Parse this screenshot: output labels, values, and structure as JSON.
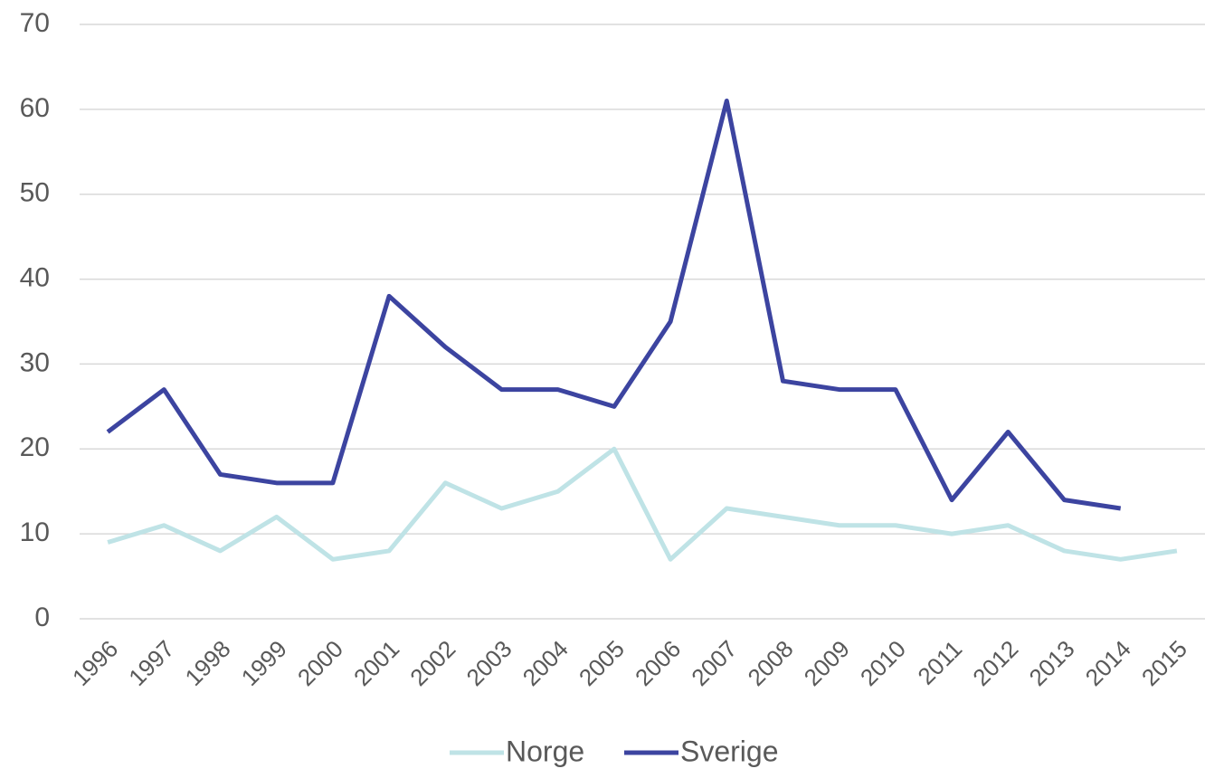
{
  "chart_data": {
    "type": "line",
    "categories": [
      "1996",
      "1997",
      "1998",
      "1999",
      "2000",
      "2001",
      "2002",
      "2003",
      "2004",
      "2005",
      "2006",
      "2007",
      "2008",
      "2009",
      "2010",
      "2011",
      "2012",
      "2013",
      "2014",
      "2015"
    ],
    "series": [
      {
        "name": "Norge",
        "color": "#bfe3e6",
        "values": [
          9,
          11,
          8,
          12,
          7,
          8,
          16,
          13,
          15,
          20,
          7,
          13,
          12,
          11,
          11,
          10,
          11,
          8,
          7,
          8
        ]
      },
      {
        "name": "Sverige",
        "color": "#3c44a0",
        "values": [
          22,
          27,
          17,
          16,
          16,
          38,
          32,
          27,
          27,
          25,
          35,
          61,
          28,
          27,
          27,
          14,
          22,
          14,
          13,
          null
        ]
      }
    ],
    "ylim": [
      0,
      70
    ],
    "yticks": [
      0,
      10,
      20,
      30,
      40,
      50,
      60,
      70
    ],
    "grid": true,
    "legend": "bottom"
  }
}
